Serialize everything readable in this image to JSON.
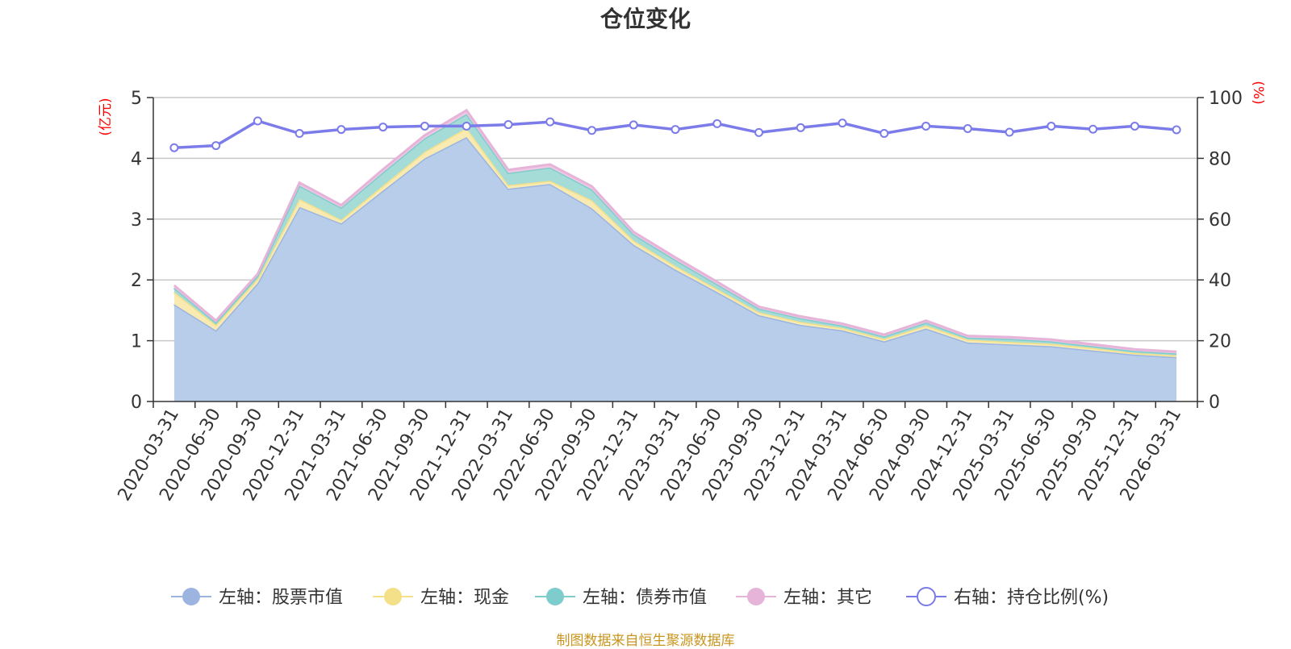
{
  "chart_data": {
    "type": "area",
    "stacked": true,
    "title": "仓位变化",
    "categories": [
      "2020-03-31",
      "2020-06-30",
      "2020-09-30",
      "2020-12-31",
      "2021-03-31",
      "2021-06-30",
      "2021-09-30",
      "2021-12-31",
      "2022-03-31",
      "2022-06-30",
      "2022-09-30",
      "2022-12-31",
      "2023-03-31",
      "2023-06-30",
      "2023-09-30",
      "2023-12-31",
      "2024-03-31",
      "2024-06-30",
      "2024-09-30",
      "2024-12-31",
      "2025-03-31",
      "2025-06-30",
      "2025-09-30",
      "2025-12-31",
      "2026-03-31"
    ],
    "left_axis": {
      "unit": "(亿元)",
      "ylim": [
        0,
        5
      ],
      "ticks": [
        "0",
        "1",
        "2",
        "3",
        "4",
        "5"
      ],
      "tick_values": [
        0,
        1,
        2,
        3,
        4,
        5
      ]
    },
    "right_axis": {
      "unit": "(%)",
      "ylim": [
        0,
        100
      ],
      "ticks": [
        "0",
        "20",
        "40",
        "60",
        "80",
        "100"
      ],
      "tick_values": [
        0,
        20,
        40,
        60,
        80,
        100
      ]
    },
    "series": [
      {
        "name": "左轴：股票市值",
        "axis": "left",
        "kind": "area",
        "color": "#9bb5e0",
        "fill": "#b7cdea",
        "values": [
          1.6,
          1.17,
          1.95,
          3.2,
          2.93,
          3.47,
          4.0,
          4.35,
          3.5,
          3.58,
          3.18,
          2.58,
          2.17,
          1.8,
          1.42,
          1.26,
          1.17,
          0.99,
          1.2,
          0.97,
          0.94,
          0.91,
          0.84,
          0.77,
          0.73
        ]
      },
      {
        "name": "左轴：现金",
        "axis": "left",
        "kind": "area",
        "color": "#f5e08a",
        "fill": "#f8eab0",
        "values": [
          0.2,
          0.09,
          0.07,
          0.13,
          0.06,
          0.08,
          0.11,
          0.15,
          0.06,
          0.05,
          0.13,
          0.07,
          0.06,
          0.05,
          0.05,
          0.05,
          0.04,
          0.04,
          0.05,
          0.05,
          0.04,
          0.04,
          0.04,
          0.03,
          0.03
        ]
      },
      {
        "name": "左轴：债券市值",
        "axis": "left",
        "kind": "area",
        "color": "#7fcccc",
        "fill": "#a6dcd8",
        "values": [
          0.07,
          0.04,
          0.05,
          0.22,
          0.2,
          0.22,
          0.22,
          0.23,
          0.2,
          0.22,
          0.18,
          0.1,
          0.1,
          0.08,
          0.06,
          0.06,
          0.04,
          0.04,
          0.05,
          0.03,
          0.05,
          0.04,
          0.03,
          0.03,
          0.03
        ]
      },
      {
        "name": "左轴：其它",
        "axis": "left",
        "kind": "area",
        "color": "#e6b3d9",
        "fill": "#f0c8e4",
        "values": [
          0.04,
          0.03,
          0.03,
          0.05,
          0.04,
          0.05,
          0.05,
          0.06,
          0.05,
          0.05,
          0.05,
          0.04,
          0.04,
          0.04,
          0.03,
          0.03,
          0.03,
          0.03,
          0.03,
          0.03,
          0.03,
          0.03,
          0.03,
          0.03,
          0.03
        ]
      },
      {
        "name": "右轴：持仓比例(%)",
        "axis": "right",
        "kind": "line",
        "color": "#7b7bea",
        "values": [
          83.5,
          84.2,
          92.3,
          88.2,
          89.5,
          90.3,
          90.6,
          90.6,
          91.1,
          92.0,
          89.2,
          91.0,
          89.5,
          91.4,
          88.5,
          90.1,
          91.6,
          88.2,
          90.6,
          89.8,
          88.6,
          90.6,
          89.6,
          90.6,
          89.4
        ]
      }
    ]
  },
  "footer": {
    "source": "制图数据来自恒生聚源数据库"
  }
}
